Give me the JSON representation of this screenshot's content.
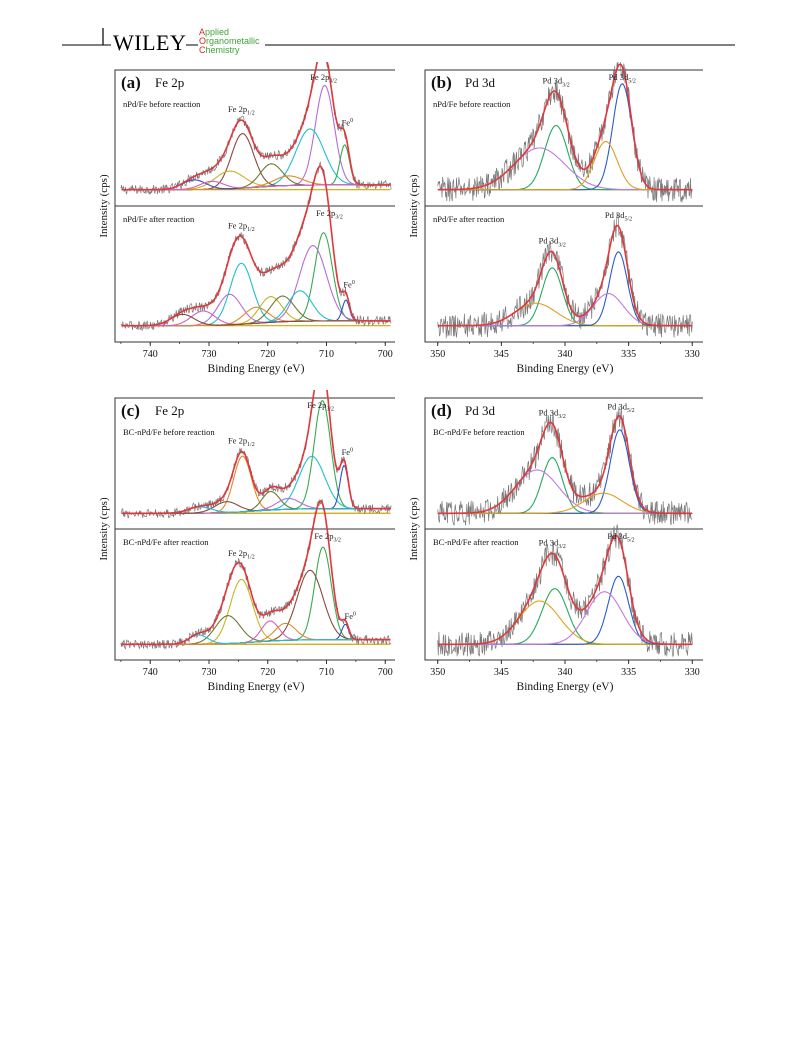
{
  "header": {
    "publisher": "WILEY",
    "journal_lines": [
      {
        "initial": "A",
        "rest": "pplied"
      },
      {
        "initial": "O",
        "rest": "rganometallic"
      },
      {
        "initial": "C",
        "rest": "hemistry"
      }
    ],
    "colors": {
      "initial": "#d7262b",
      "rest": "#3da63a",
      "rule": "#000000"
    }
  },
  "colors": {
    "raw": "#777777",
    "envelope": "#e0393d",
    "baseline": "#d8a200",
    "fe_purple": "#b46ed4",
    "fe_cyan": "#1fbfcf",
    "fe_olive": "#6b7a30",
    "fe_brown": "#8a4a3a",
    "fe_orange": "#e3882a",
    "fe_yellow": "#c9b420",
    "fe_green": "#3aaa52",
    "fe_blue": "#3050c8",
    "fe_pink": "#d060c8",
    "pd_violet": "#c07be0",
    "pd_green": "#27a860",
    "pd_blue": "#2c5cc8",
    "pd_orange": "#e0a020"
  },
  "chart_data": [
    {
      "type": "line",
      "panel_label": "(a)",
      "element": "Fe 2p",
      "xlabel": "Binding Energy (eV)",
      "ylabel": "Intensity (cps)",
      "x_ticks": [
        740,
        730,
        720,
        710,
        700
      ],
      "xlim": [
        746,
        698
      ],
      "reversed_x": true,
      "subplots": [
        {
          "condition": "nPd/Fe before reaction",
          "peak_labels": [
            {
              "text": "Fe 2p",
              "sub": "1/2",
              "sup": "",
              "x": 724.5
            },
            {
              "text": "Fe 2p",
              "sub": "3/2",
              "sup": "",
              "x": 710.5
            },
            {
              "text": "Fe",
              "sub": "",
              "sup": "0",
              "x": 706.8
            }
          ],
          "components": [
            {
              "center": 710.3,
              "height": 0.62,
              "width": 1.6,
              "color": "fe_purple"
            },
            {
              "center": 712.8,
              "height": 0.35,
              "width": 2.4,
              "color": "fe_cyan"
            },
            {
              "center": 706.9,
              "height": 0.25,
              "width": 0.8,
              "color": "fe_green"
            },
            {
              "center": 724.3,
              "height": 0.34,
              "width": 1.9,
              "color": "fe_brown"
            },
            {
              "center": 726.5,
              "height": 0.11,
              "width": 2.5,
              "color": "fe_yellow"
            },
            {
              "center": 719.4,
              "height": 0.14,
              "width": 1.9,
              "color": "fe_olive"
            },
            {
              "center": 716.5,
              "height": 0.06,
              "width": 2.4,
              "color": "fe_orange"
            },
            {
              "center": 732.5,
              "height": 0.06,
              "width": 2.0,
              "color": "fe_blue"
            },
            {
              "center": 729.5,
              "height": 0.05,
              "width": 2.0,
              "color": "fe_pink"
            }
          ]
        },
        {
          "condition": "nPd/Fe after reaction",
          "peak_labels": [
            {
              "text": "Fe 2p",
              "sub": "1/2",
              "sup": "",
              "x": 724.5
            },
            {
              "text": "Fe 2p",
              "sub": "3/2",
              "sup": "",
              "x": 709.5
            },
            {
              "text": "Fe",
              "sub": "",
              "sup": "0",
              "x": 706.5
            }
          ],
          "components": [
            {
              "center": 710.5,
              "height": 0.55,
              "width": 1.5,
              "color": "fe_green"
            },
            {
              "center": 712.3,
              "height": 0.47,
              "width": 2.3,
              "color": "fe_purple"
            },
            {
              "center": 714.5,
              "height": 0.19,
              "width": 2.0,
              "color": "fe_cyan"
            },
            {
              "center": 706.7,
              "height": 0.13,
              "width": 0.6,
              "color": "fe_blue"
            },
            {
              "center": 724.5,
              "height": 0.38,
              "width": 1.9,
              "color": "fe_cyan"
            },
            {
              "center": 726.5,
              "height": 0.19,
              "width": 2.0,
              "color": "fe_purple"
            },
            {
              "center": 719.5,
              "height": 0.16,
              "width": 1.9,
              "color": "fe_yellow"
            },
            {
              "center": 717.5,
              "height": 0.16,
              "width": 2.0,
              "color": "fe_olive"
            },
            {
              "center": 722.0,
              "height": 0.1,
              "width": 2.0,
              "color": "fe_orange"
            },
            {
              "center": 731.0,
              "height": 0.09,
              "width": 2.0,
              "color": "fe_pink"
            },
            {
              "center": 734.5,
              "height": 0.07,
              "width": 2.0,
              "color": "fe_brown"
            }
          ]
        }
      ]
    },
    {
      "type": "line",
      "panel_label": "(b)",
      "element": "Pd 3d",
      "xlabel": "Binding Energy (eV)",
      "ylabel": "Intensity (cps)",
      "x_ticks": [
        350,
        345,
        340,
        335,
        330
      ],
      "xlim": [
        351,
        329
      ],
      "reversed_x": true,
      "subplots": [
        {
          "condition": "nPd/Fe before reaction",
          "peak_labels": [
            {
              "text": "Pd 3d",
              "sub": "3/2",
              "sup": "",
              "x": 340.7
            },
            {
              "text": "Pd 3d",
              "sub": "5/2",
              "sup": "",
              "x": 335.5
            }
          ],
          "components": [
            {
              "center": 340.7,
              "height": 0.4,
              "width": 0.9,
              "color": "pd_green"
            },
            {
              "center": 342.0,
              "height": 0.26,
              "width": 2.0,
              "color": "pd_violet"
            },
            {
              "center": 335.5,
              "height": 0.66,
              "width": 0.75,
              "color": "pd_blue"
            },
            {
              "center": 336.8,
              "height": 0.3,
              "width": 0.9,
              "color": "pd_orange"
            }
          ]
        },
        {
          "condition": "nPd/Fe after reaction",
          "peak_labels": [
            {
              "text": "Pd 3d",
              "sub": "3/2",
              "sup": "",
              "x": 341.0
            },
            {
              "text": "Pd 3d",
              "sub": "5/2",
              "sup": "",
              "x": 335.8
            }
          ],
          "components": [
            {
              "center": 341.0,
              "height": 0.36,
              "width": 0.8,
              "color": "pd_green"
            },
            {
              "center": 342.3,
              "height": 0.14,
              "width": 1.6,
              "color": "pd_orange"
            },
            {
              "center": 335.8,
              "height": 0.46,
              "width": 0.7,
              "color": "pd_blue"
            },
            {
              "center": 336.6,
              "height": 0.2,
              "width": 1.2,
              "color": "pd_violet"
            }
          ]
        }
      ]
    },
    {
      "type": "line",
      "panel_label": "(c)",
      "element": "Fe 2p",
      "xlabel": "Binding Energy (eV)",
      "ylabel": "Intensity (cps)",
      "x_ticks": [
        740,
        730,
        720,
        710,
        700
      ],
      "xlim": [
        746,
        698
      ],
      "reversed_x": true,
      "subplots": [
        {
          "condition": "BC-nPd/Fe before reaction",
          "peak_labels": [
            {
              "text": "Fe 2p",
              "sub": "1/2",
              "sup": "",
              "x": 724.5
            },
            {
              "text": "Fe 2p",
              "sub": "3/2",
              "sup": "",
              "x": 711.0
            },
            {
              "text": "Fe",
              "sub": "",
              "sup": "0",
              "x": 706.8
            }
          ],
          "components": [
            {
              "center": 710.7,
              "height": 0.7,
              "width": 1.4,
              "color": "fe_green"
            },
            {
              "center": 712.5,
              "height": 0.34,
              "width": 2.2,
              "color": "fe_cyan"
            },
            {
              "center": 707.0,
              "height": 0.28,
              "width": 0.7,
              "color": "fe_blue"
            },
            {
              "center": 724.3,
              "height": 0.36,
              "width": 1.5,
              "color": "fe_orange"
            },
            {
              "center": 719.5,
              "height": 0.12,
              "width": 1.5,
              "color": "fe_olive"
            },
            {
              "center": 716.5,
              "height": 0.07,
              "width": 2.0,
              "color": "fe_purple"
            },
            {
              "center": 727.0,
              "height": 0.07,
              "width": 2.0,
              "color": "fe_brown"
            },
            {
              "center": 731.5,
              "height": 0.04,
              "width": 2.0,
              "color": "fe_cyan"
            }
          ]
        },
        {
          "condition": "BC-nPd/Fe after reaction",
          "peak_labels": [
            {
              "text": "Fe 2p",
              "sub": "1/2",
              "sup": "",
              "x": 724.5
            },
            {
              "text": "Fe 2p",
              "sub": "3/2",
              "sup": "",
              "x": 709.8
            },
            {
              "text": "Fe",
              "sub": "",
              "sup": "0",
              "x": 706.3
            }
          ],
          "components": [
            {
              "center": 710.6,
              "height": 0.6,
              "width": 1.4,
              "color": "fe_green"
            },
            {
              "center": 712.8,
              "height": 0.45,
              "width": 2.2,
              "color": "fe_brown"
            },
            {
              "center": 706.8,
              "height": 0.1,
              "width": 0.6,
              "color": "fe_blue"
            },
            {
              "center": 724.5,
              "height": 0.41,
              "width": 1.9,
              "color": "fe_yellow"
            },
            {
              "center": 726.8,
              "height": 0.18,
              "width": 2.1,
              "color": "fe_olive"
            },
            {
              "center": 719.6,
              "height": 0.13,
              "width": 1.5,
              "color": "fe_pink"
            },
            {
              "center": 717.0,
              "height": 0.11,
              "width": 1.8,
              "color": "fe_orange"
            },
            {
              "center": 731.8,
              "height": 0.06,
              "width": 1.6,
              "color": "fe_cyan"
            }
          ]
        }
      ]
    },
    {
      "type": "line",
      "panel_label": "(d)",
      "element": "Pd 3d",
      "xlabel": "Binding Energy (eV)",
      "ylabel": "Intensity (cps)",
      "x_ticks": [
        350,
        345,
        340,
        335,
        330
      ],
      "xlim": [
        351,
        329
      ],
      "reversed_x": true,
      "subplots": [
        {
          "condition": "BC-nPd/Fe before reaction",
          "peak_labels": [
            {
              "text": "Pd 3d",
              "sub": "3/2",
              "sup": "",
              "x": 341.0
            },
            {
              "text": "Pd 3d",
              "sub": "5/2",
              "sup": "",
              "x": 335.6
            }
          ],
          "components": [
            {
              "center": 341.0,
              "height": 0.36,
              "width": 0.8,
              "color": "pd_green"
            },
            {
              "center": 342.2,
              "height": 0.28,
              "width": 1.7,
              "color": "pd_violet"
            },
            {
              "center": 335.7,
              "height": 0.54,
              "width": 0.75,
              "color": "pd_blue"
            },
            {
              "center": 337.0,
              "height": 0.13,
              "width": 1.5,
              "color": "pd_orange"
            }
          ]
        },
        {
          "condition": "BC-nPd/Fe after reaction",
          "peak_labels": [
            {
              "text": "Pd 3d",
              "sub": "3/2",
              "sup": "",
              "x": 341.0
            },
            {
              "text": "Pd 3d",
              "sub": "5/2",
              "sup": "",
              "x": 335.6
            }
          ],
          "components": [
            {
              "center": 340.8,
              "height": 0.36,
              "width": 1.0,
              "color": "pd_green"
            },
            {
              "center": 342.0,
              "height": 0.28,
              "width": 1.6,
              "color": "pd_orange"
            },
            {
              "center": 335.8,
              "height": 0.44,
              "width": 0.8,
              "color": "pd_blue"
            },
            {
              "center": 336.9,
              "height": 0.34,
              "width": 1.4,
              "color": "pd_violet"
            }
          ]
        }
      ]
    }
  ]
}
